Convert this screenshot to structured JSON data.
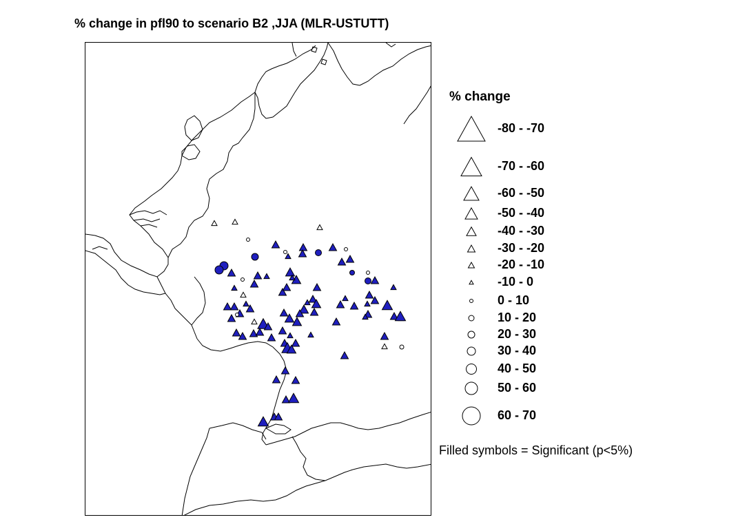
{
  "title": "% change in pfl90 to scenario B2 ,JJA (MLR-USTUTT)",
  "legend": {
    "title": "% change",
    "items": [
      {
        "label": "-80 - -70",
        "shape": "triangle"
      },
      {
        "label": "-70 - -60",
        "shape": "triangle"
      },
      {
        "label": "-60 - -50",
        "shape": "triangle"
      },
      {
        "label": "-50 - -40",
        "shape": "triangle"
      },
      {
        "label": "-40 - -30",
        "shape": "triangle"
      },
      {
        "label": "-30 - -20",
        "shape": "triangle"
      },
      {
        "label": "-20 - -10",
        "shape": "triangle"
      },
      {
        "label": "-10 - 0",
        "shape": "triangle"
      },
      {
        "label": "0 - 10",
        "shape": "circle"
      },
      {
        "label": "10 - 20",
        "shape": "circle"
      },
      {
        "label": "20 - 30",
        "shape": "circle"
      },
      {
        "label": "30 - 40",
        "shape": "circle"
      },
      {
        "label": "40 - 50",
        "shape": "circle"
      },
      {
        "label": "50 - 60",
        "shape": "circle"
      },
      {
        "label": "60 - 70",
        "shape": "circle"
      }
    ]
  },
  "footnote": "Filled symbols = Significant (p<5%)",
  "colors": {
    "significant_fill": "#1f1fbf",
    "outline": "#000000",
    "border_lines": "#000000"
  },
  "symbol_classes_shown": {
    "triangle_filled": "negative change, significant",
    "triangle_open": "negative change, not significant",
    "circle_filled": "positive change, significant",
    "circle_open": "positive change, not significant"
  }
}
